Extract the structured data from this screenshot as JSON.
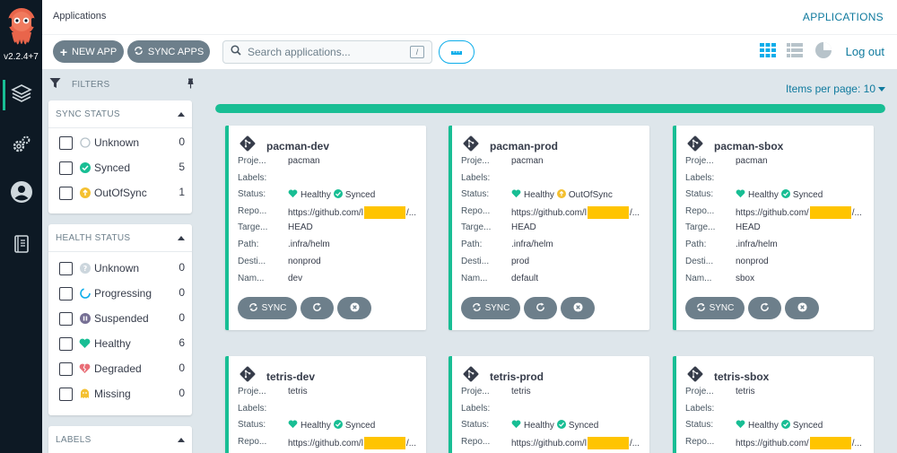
{
  "nav": {
    "version": "v2.2.4+7",
    "items": [
      "applications-nav",
      "settings-nav",
      "user-info-nav",
      "documentation-nav"
    ]
  },
  "header": {
    "title": "Applications",
    "title_right": "APPLICATIONS",
    "new_app_label": "NEW APP",
    "sync_apps_label": "SYNC APPS",
    "search_placeholder": "Search applications...",
    "search_shortcut": "/",
    "logout_label": "Log out"
  },
  "filters": {
    "label": "FILTERS",
    "sync_status": {
      "title": "SYNC STATUS",
      "items": [
        {
          "label": "Unknown",
          "count": "0"
        },
        {
          "label": "Synced",
          "count": "5"
        },
        {
          "label": "OutOfSync",
          "count": "1"
        }
      ]
    },
    "health_status": {
      "title": "HEALTH STATUS",
      "items": [
        {
          "label": "Unknown",
          "count": "0"
        },
        {
          "label": "Progressing",
          "count": "0"
        },
        {
          "label": "Suspended",
          "count": "0"
        },
        {
          "label": "Healthy",
          "count": "6"
        },
        {
          "label": "Degraded",
          "count": "0"
        },
        {
          "label": "Missing",
          "count": "0"
        }
      ]
    },
    "labels": {
      "title": "LABELS"
    }
  },
  "main": {
    "items_per_page": "Items per page: 10",
    "progress_fraction": 1.0
  },
  "field_labels": {
    "project": "Proje...",
    "labels": "Labels:",
    "status": "Status:",
    "repo": "Repo...",
    "target": "Targe...",
    "path": "Path:",
    "destination": "Desti...",
    "namespace": "Nam..."
  },
  "status_words": {
    "healthy": "Healthy",
    "synced": "Synced",
    "outofsync": "OutOfSync"
  },
  "sync_button_label": "SYNC",
  "colors": {
    "healthy": "#18be94",
    "outofsync": "#f4c030",
    "accent": "#0dadea",
    "button": "#6d7f8b"
  },
  "apps": [
    {
      "name": "pacman-dev",
      "project": "pacman",
      "labels": "",
      "sync": "Synced",
      "repo_prefix": "https://github.com/l",
      "repo_suffix": "/...",
      "target": "HEAD",
      "path": ".infra/helm",
      "destination": "nonprod",
      "namespace": "dev"
    },
    {
      "name": "pacman-prod",
      "project": "pacman",
      "labels": "",
      "sync": "OutOfSync",
      "repo_prefix": "https://github.com/l",
      "repo_suffix": "/...",
      "target": "HEAD",
      "path": ".infra/helm",
      "destination": "prod",
      "namespace": "default"
    },
    {
      "name": "pacman-sbox",
      "project": "pacman",
      "labels": "",
      "sync": "Synced",
      "repo_prefix": "https://github.com/",
      "repo_suffix": "/...",
      "target": "HEAD",
      "path": ".infra/helm",
      "destination": "nonprod",
      "namespace": "sbox"
    },
    {
      "name": "tetris-dev",
      "project": "tetris",
      "labels": "",
      "sync": "Synced",
      "repo_prefix": "https://github.com/l",
      "repo_suffix": "/...",
      "target": "",
      "path": "",
      "destination": "",
      "namespace": ""
    },
    {
      "name": "tetris-prod",
      "project": "tetris",
      "labels": "",
      "sync": "Synced",
      "repo_prefix": "https://github.com/l",
      "repo_suffix": "/...",
      "target": "",
      "path": "",
      "destination": "",
      "namespace": ""
    },
    {
      "name": "tetris-sbox",
      "project": "tetris",
      "labels": "",
      "sync": "Synced",
      "repo_prefix": "https://github.com/",
      "repo_suffix": "/...",
      "target": "",
      "path": "",
      "destination": "",
      "namespace": ""
    }
  ]
}
